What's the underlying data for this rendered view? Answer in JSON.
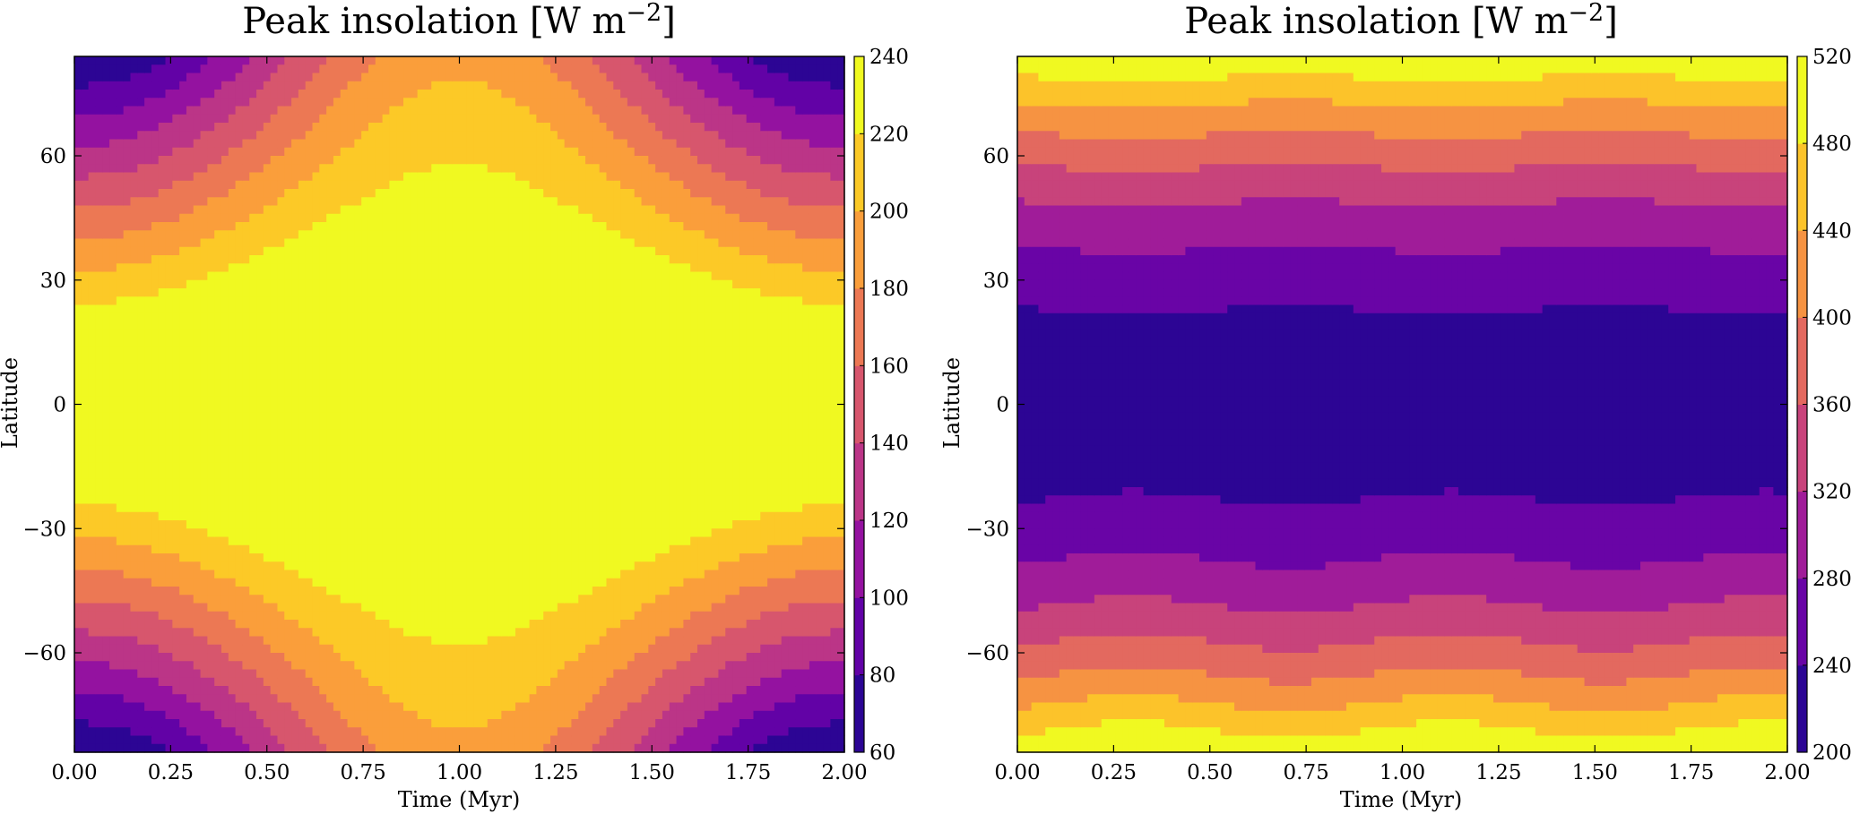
{
  "chart_data": [
    {
      "type": "contour",
      "title": "Peak insolation [W m",
      "title_superscript": "−2",
      "title_close": "]",
      "xlabel": "Time (Myr)",
      "ylabel": "Latitude",
      "xlim": [
        0,
        2
      ],
      "ylim": [
        -84,
        84
      ],
      "xticks": [
        "0.00",
        "0.25",
        "0.50",
        "0.75",
        "1.00",
        "1.25",
        "1.50",
        "1.75",
        "2.00"
      ],
      "yticks": [
        "60",
        "30",
        "0",
        "−30",
        "−60"
      ],
      "colorbar": {
        "min": 60,
        "max": 240,
        "ticks": [
          "240",
          "220",
          "200",
          "180",
          "160",
          "140",
          "120",
          "100",
          "80",
          "60"
        ],
        "levels": [
          60,
          80,
          100,
          120,
          140,
          160,
          180,
          200,
          220,
          240
        ]
      },
      "colormap": "plasma",
      "field": {
        "equator_peak": 240,
        "pole_low_edges": 60,
        "pole_high_middle": 195,
        "period_myr": 2
      }
    },
    {
      "type": "contour",
      "title": "Peak insolation [W m",
      "title_superscript": "−2",
      "title_close": "]",
      "xlabel": "Time (Myr)",
      "ylabel": "Latitude",
      "xlim": [
        0,
        2
      ],
      "ylim": [
        -84,
        84
      ],
      "xticks": [
        "0.00",
        "0.25",
        "0.50",
        "0.75",
        "1.00",
        "1.25",
        "1.50",
        "1.75",
        "2.00"
      ],
      "yticks": [
        "60",
        "30",
        "0",
        "−30",
        "−60"
      ],
      "colorbar": {
        "min": 200,
        "max": 520,
        "ticks": [
          "520",
          "480",
          "440",
          "400",
          "360",
          "320",
          "280",
          "240",
          "200"
        ],
        "levels": [
          200,
          240,
          280,
          320,
          360,
          400,
          440,
          480,
          520
        ]
      },
      "colormap": "plasma",
      "field": {
        "equator_low": 215,
        "pole_high": 500,
        "period_myr": 0.8
      }
    }
  ],
  "colors": {
    "plasma_stops": [
      "#2c0594",
      "#5c01a6",
      "#8b0aa5",
      "#b02a90",
      "#cc4778",
      "#e16462",
      "#f2844b",
      "#fca636",
      "#fcce25",
      "#f0f921"
    ]
  }
}
